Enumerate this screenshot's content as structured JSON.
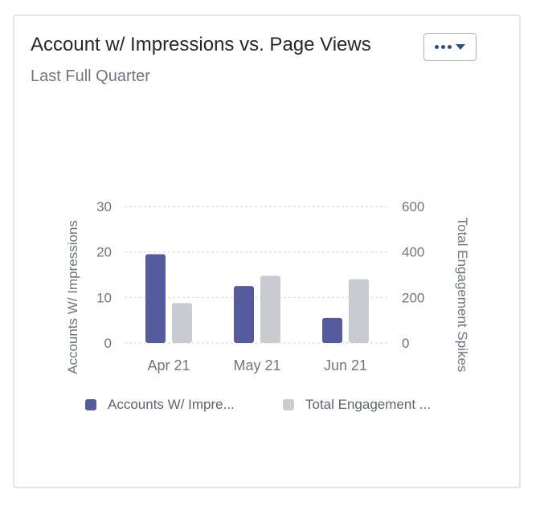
{
  "card": {
    "title": "Account w/ Impressions vs. Page Views",
    "subtitle": "Last Full Quarter",
    "menu_icon": "more-dots-with-caret",
    "menu_dots_color": "#2a4f8a"
  },
  "chart_data": {
    "type": "bar",
    "categories": [
      "Apr 21",
      "May 21",
      "Jun 21"
    ],
    "series": [
      {
        "name": "Accounts W/ Impressions",
        "legend_label": "Accounts W/ Impre...",
        "axis": "left",
        "color": "#565b9e",
        "values": [
          19.5,
          12.5,
          5.5
        ]
      },
      {
        "name": "Total Engagement Spikes",
        "legend_label": "Total Engagement ...",
        "axis": "right",
        "color": "#c8ccd1",
        "values": [
          175,
          295,
          280
        ]
      }
    ],
    "left_axis": {
      "label": "Accounts W/ Impressions",
      "ticks": [
        0,
        10,
        20,
        30
      ],
      "ylim": [
        0,
        30
      ]
    },
    "right_axis": {
      "label": "Total Engagement Spikes",
      "ticks": [
        0,
        200,
        400,
        600
      ],
      "ylim": [
        0,
        600
      ]
    },
    "grid": true,
    "legend_position": "bottom"
  }
}
